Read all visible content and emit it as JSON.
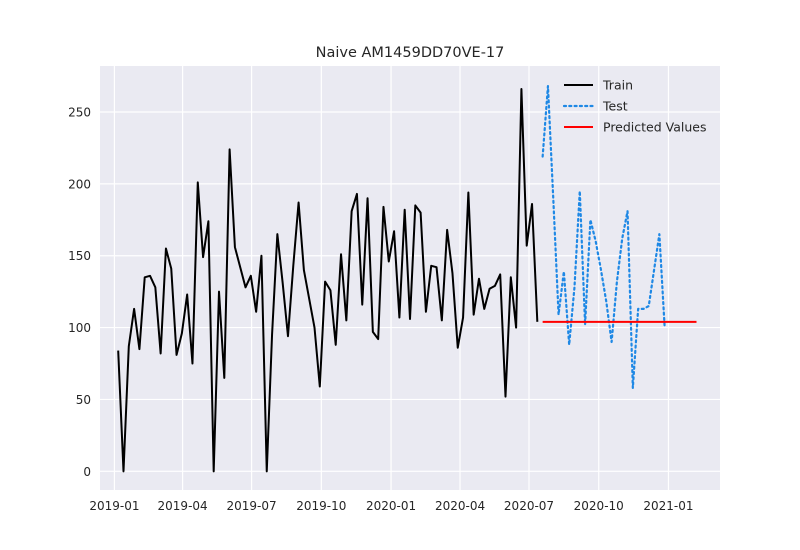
{
  "chart_data": {
    "type": "line",
    "title": "Naive AM1459DD70VE-17",
    "xlabel": "",
    "ylabel": "",
    "xlim": [
      "2018-12-13",
      "2021-03-10"
    ],
    "ylim": [
      -13,
      282
    ],
    "grid": true,
    "legend": "top-right",
    "x_ticks": [
      {
        "date": "2019-01-01",
        "label": "2019-01"
      },
      {
        "date": "2019-04-01",
        "label": "2019-04"
      },
      {
        "date": "2019-07-01",
        "label": "2019-07"
      },
      {
        "date": "2019-10-01",
        "label": "2019-10"
      },
      {
        "date": "2020-01-01",
        "label": "2020-01"
      },
      {
        "date": "2020-04-01",
        "label": "2020-04"
      },
      {
        "date": "2020-07-01",
        "label": "2020-07"
      },
      {
        "date": "2020-10-01",
        "label": "2020-10"
      },
      {
        "date": "2021-01-01",
        "label": "2021-01"
      }
    ],
    "y_ticks": [
      0,
      50,
      100,
      150,
      200,
      250
    ],
    "series": [
      {
        "name": "Train",
        "style": "solid",
        "color": "#000000",
        "points": [
          [
            "2019-01-06",
            84
          ],
          [
            "2019-01-13",
            0
          ],
          [
            "2019-01-20",
            87
          ],
          [
            "2019-01-27",
            113
          ],
          [
            "2019-02-03",
            85
          ],
          [
            "2019-02-10",
            135
          ],
          [
            "2019-02-17",
            136
          ],
          [
            "2019-02-24",
            128
          ],
          [
            "2019-03-03",
            82
          ],
          [
            "2019-03-10",
            155
          ],
          [
            "2019-03-17",
            141
          ],
          [
            "2019-03-24",
            81
          ],
          [
            "2019-03-31",
            96
          ],
          [
            "2019-04-07",
            123
          ],
          [
            "2019-04-14",
            75
          ],
          [
            "2019-04-21",
            201
          ],
          [
            "2019-04-28",
            149
          ],
          [
            "2019-05-05",
            174
          ],
          [
            "2019-05-12",
            0
          ],
          [
            "2019-05-19",
            125
          ],
          [
            "2019-05-26",
            65
          ],
          [
            "2019-06-02",
            224
          ],
          [
            "2019-06-09",
            156
          ],
          [
            "2019-06-16",
            142
          ],
          [
            "2019-06-23",
            128
          ],
          [
            "2019-06-30",
            136
          ],
          [
            "2019-07-07",
            111
          ],
          [
            "2019-07-14",
            150
          ],
          [
            "2019-07-21",
            0
          ],
          [
            "2019-07-28",
            95
          ],
          [
            "2019-08-04",
            165
          ],
          [
            "2019-08-11",
            131
          ],
          [
            "2019-08-18",
            94
          ],
          [
            "2019-08-25",
            143
          ],
          [
            "2019-09-01",
            187
          ],
          [
            "2019-09-08",
            140
          ],
          [
            "2019-09-15",
            120
          ],
          [
            "2019-09-22",
            100
          ],
          [
            "2019-09-29",
            59
          ],
          [
            "2019-10-06",
            132
          ],
          [
            "2019-10-13",
            126
          ],
          [
            "2019-10-20",
            88
          ],
          [
            "2019-10-27",
            151
          ],
          [
            "2019-11-03",
            105
          ],
          [
            "2019-11-10",
            181
          ],
          [
            "2019-11-17",
            193
          ],
          [
            "2019-11-24",
            116
          ],
          [
            "2019-12-01",
            190
          ],
          [
            "2019-12-08",
            97
          ],
          [
            "2019-12-15",
            92
          ],
          [
            "2019-12-22",
            184
          ],
          [
            "2019-12-29",
            146
          ],
          [
            "2020-01-05",
            167
          ],
          [
            "2020-01-12",
            107
          ],
          [
            "2020-01-19",
            182
          ],
          [
            "2020-01-26",
            106
          ],
          [
            "2020-02-02",
            185
          ],
          [
            "2020-02-09",
            180
          ],
          [
            "2020-02-16",
            111
          ],
          [
            "2020-02-23",
            143
          ],
          [
            "2020-03-01",
            142
          ],
          [
            "2020-03-08",
            105
          ],
          [
            "2020-03-15",
            168
          ],
          [
            "2020-03-22",
            138
          ],
          [
            "2020-03-29",
            86
          ],
          [
            "2020-04-05",
            107
          ],
          [
            "2020-04-12",
            194
          ],
          [
            "2020-04-19",
            109
          ],
          [
            "2020-04-26",
            134
          ],
          [
            "2020-05-03",
            113
          ],
          [
            "2020-05-10",
            127
          ],
          [
            "2020-05-17",
            129
          ],
          [
            "2020-05-24",
            137
          ],
          [
            "2020-05-31",
            52
          ],
          [
            "2020-06-07",
            135
          ],
          [
            "2020-06-14",
            100
          ],
          [
            "2020-06-21",
            266
          ],
          [
            "2020-06-28",
            157
          ],
          [
            "2020-07-05",
            186
          ],
          [
            "2020-07-12",
            104
          ]
        ]
      },
      {
        "name": "Test",
        "style": "dotted",
        "color": "#1e88e5",
        "points": [
          [
            "2020-07-19",
            219
          ],
          [
            "2020-07-26",
            268
          ],
          [
            "2020-08-02",
            190
          ],
          [
            "2020-08-09",
            109
          ],
          [
            "2020-08-16",
            139
          ],
          [
            "2020-08-23",
            88
          ],
          [
            "2020-08-30",
            128
          ],
          [
            "2020-09-06",
            195
          ],
          [
            "2020-09-13",
            102
          ],
          [
            "2020-09-20",
            175
          ],
          [
            "2020-09-27",
            160
          ],
          [
            "2020-10-04",
            140
          ],
          [
            "2020-10-11",
            118
          ],
          [
            "2020-10-18",
            90
          ],
          [
            "2020-10-25",
            132
          ],
          [
            "2020-11-01",
            162
          ],
          [
            "2020-11-08",
            181
          ],
          [
            "2020-11-15",
            58
          ],
          [
            "2020-11-22",
            113
          ],
          [
            "2020-11-29",
            113
          ],
          [
            "2020-12-06",
            115
          ],
          [
            "2020-12-13",
            140
          ],
          [
            "2020-12-20",
            165
          ],
          [
            "2020-12-27",
            100
          ]
        ]
      },
      {
        "name": "Predicted Values",
        "style": "solid",
        "color": "#ff0000",
        "points": [
          [
            "2020-07-19",
            104
          ],
          [
            "2021-02-07",
            104
          ]
        ]
      }
    ]
  }
}
